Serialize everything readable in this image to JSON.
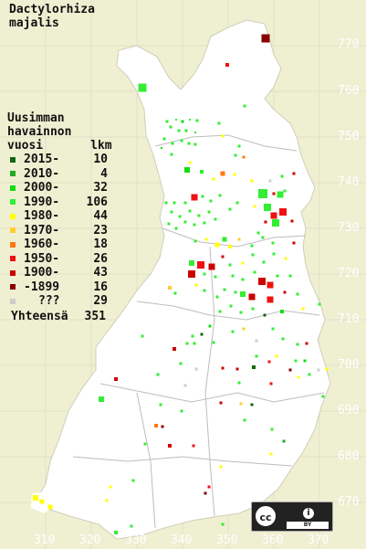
{
  "title": {
    "line1": "Dactylorhiza",
    "line2": "majalis"
  },
  "legend": {
    "heading": [
      "Uusimman",
      "havainnon"
    ],
    "col_label": "vuosi",
    "col_count": "lkm",
    "items": [
      {
        "label": "2015-",
        "count": "10",
        "color": "#116611"
      },
      {
        "label": "2010-",
        "count": "4",
        "color": "#22aa22"
      },
      {
        "label": "2000-",
        "count": "32",
        "color": "#11dd11"
      },
      {
        "label": "1990-",
        "count": "106",
        "color": "#33ee33"
      },
      {
        "label": "1980-",
        "count": "44",
        "color": "#ffff00"
      },
      {
        "label": "1970-",
        "count": "23",
        "color": "#ffcc33"
      },
      {
        "label": "1960-",
        "count": "18",
        "color": "#ff7711"
      },
      {
        "label": "1950-",
        "count": "26",
        "color": "#ee1111"
      },
      {
        "label": "1900-",
        "count": "43",
        "color": "#cc0000"
      },
      {
        "label": "-1899",
        "count": "16",
        "color": "#880000"
      },
      {
        "label": "???",
        "count": "29",
        "color": "#cccccc"
      }
    ],
    "total_label": "Yhteensä",
    "total_count": "351"
  },
  "map": {
    "land_color": "#ffffff",
    "sea_color": "#efefd2",
    "border_color": "#b8b8b8",
    "y_ticks": [
      "770",
      "760",
      "750",
      "740",
      "730",
      "720",
      "710",
      "700",
      "690",
      "680",
      "670"
    ],
    "x_ticks": [
      "310",
      "320",
      "330",
      "340",
      "350",
      "360",
      "370"
    ]
  },
  "license": {
    "cc": "cc",
    "by": "BY",
    "person_icon": "person-icon"
  }
}
